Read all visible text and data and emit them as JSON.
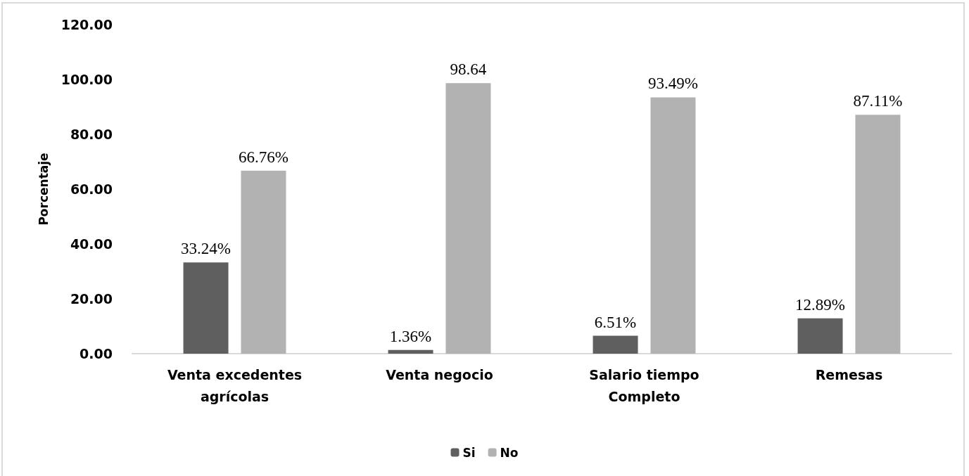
{
  "chart_data": {
    "type": "bar",
    "ylabel": "Porcentaje",
    "categories": [
      "Venta excedentes\nagrícolas",
      "Venta negocio",
      "Salario tiempo\nCompleto",
      "Remesas"
    ],
    "series": [
      {
        "name": "Si",
        "color": "#5f5f5f",
        "values": [
          33.24,
          1.36,
          6.51,
          12.89
        ],
        "value_labels": [
          "33.24%",
          "1.36%",
          "6.51%",
          "12.89%"
        ]
      },
      {
        "name": "No",
        "color": "#b2b2b2",
        "values": [
          66.76,
          98.64,
          93.49,
          87.11
        ],
        "value_labels": [
          "66.76%",
          "98.64",
          "93.49%",
          "87.11%"
        ]
      }
    ],
    "ylim": [
      0,
      120
    ],
    "yticks": [
      {
        "value": 0,
        "label": "0.00"
      },
      {
        "value": 20,
        "label": "20.00"
      },
      {
        "value": 40,
        "label": "40.00"
      },
      {
        "value": 60,
        "label": "60.00"
      },
      {
        "value": 80,
        "label": "80.00"
      },
      {
        "value": 100,
        "label": "100.00"
      },
      {
        "value": 120,
        "label": "120.00"
      }
    ],
    "grid": false,
    "legend": "bottom"
  }
}
